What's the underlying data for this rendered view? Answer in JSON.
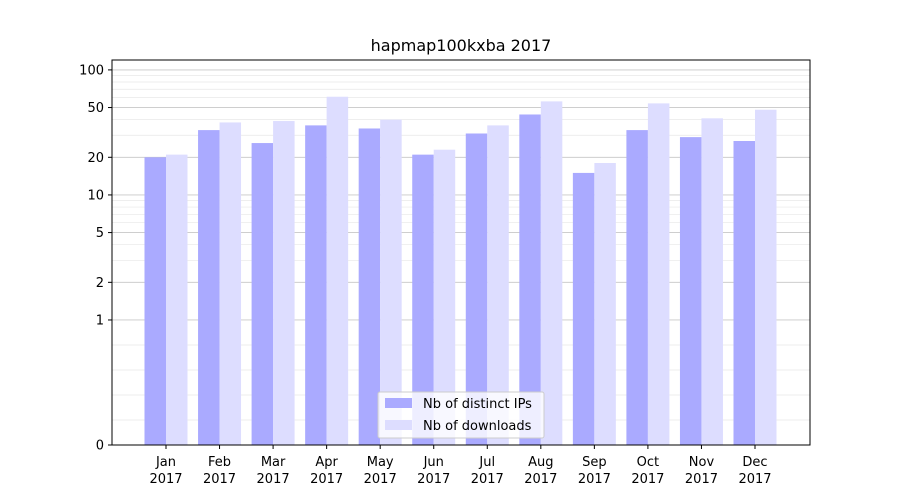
{
  "chart_data": {
    "type": "bar",
    "title": "hapmap100kxba 2017",
    "xlabel": "",
    "ylabel": "",
    "yscale": "symlog",
    "ylim": [
      0,
      120
    ],
    "yticks": [
      0,
      1,
      2,
      5,
      10,
      20,
      50,
      100
    ],
    "ytick_labels": [
      "0",
      "1",
      "2",
      "5",
      "10",
      "20",
      "50",
      "100"
    ],
    "grid": "horizontal",
    "legend_position": "bottom-center",
    "categories": [
      "Jan\n2017",
      "Feb\n2017",
      "Mar\n2017",
      "Apr\n2017",
      "May\n2017",
      "Jun\n2017",
      "Jul\n2017",
      "Aug\n2017",
      "Sep\n2017",
      "Oct\n2017",
      "Nov\n2017",
      "Dec\n2017"
    ],
    "series": [
      {
        "name": "Nb of distinct IPs",
        "color": "#aaaaff",
        "values": [
          20,
          33,
          26,
          36,
          34,
          21,
          31,
          44,
          15,
          33,
          29,
          27
        ]
      },
      {
        "name": "Nb of downloads",
        "color": "#ddddff",
        "values": [
          21,
          38,
          39,
          61,
          40,
          23,
          36,
          56,
          18,
          54,
          41,
          48
        ]
      }
    ]
  }
}
